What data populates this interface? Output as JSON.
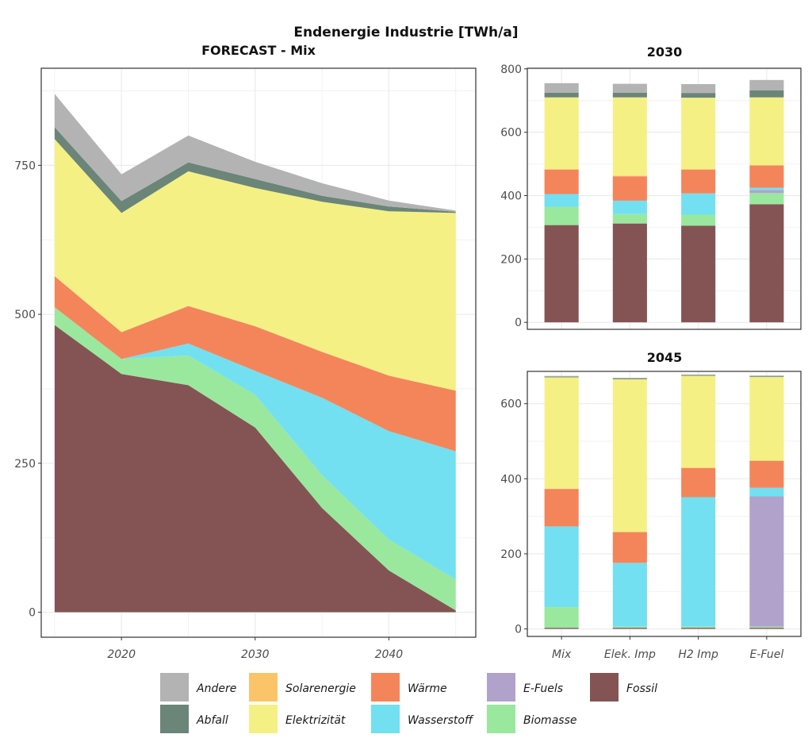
{
  "main_title": "Endenergie Industrie [TWh/a]",
  "colors": {
    "Andere": "#b3b3b3",
    "Abfall": "#6b8579",
    "Solarenergie": "#fcc468",
    "Elektrizität": "#f5f084",
    "Wärme": "#f4855b",
    "Wasserstoff": "#72e0f0",
    "E-Fuels": "#b1a2cc",
    "Biomasse": "#99e89e",
    "Fossil": "#845454"
  },
  "legend": [
    {
      "key": "Andere",
      "label": "Andere"
    },
    {
      "key": "Abfall",
      "label": "Abfall"
    },
    {
      "key": "Solarenergie",
      "label": "Solarenergie"
    },
    {
      "key": "Elektrizität",
      "label": "Elektrizität"
    },
    {
      "key": "Wärme",
      "label": "Wärme"
    },
    {
      "key": "Wasserstoff",
      "label": "Wasserstoff"
    },
    {
      "key": "E-Fuels",
      "label": "E-Fuels"
    },
    {
      "key": "Biomasse",
      "label": "Biomasse"
    },
    {
      "key": "Fossil",
      "label": "Fossil"
    }
  ],
  "chart_data": [
    {
      "type": "area",
      "stacked": true,
      "title": "FORECAST - Mix",
      "x": [
        2015,
        2020,
        2025,
        2030,
        2035,
        2040,
        2045
      ],
      "xticks": [
        "2020",
        "2030",
        "2040"
      ],
      "xtick_values": [
        2020,
        2030,
        2040
      ],
      "xlim": [
        2014,
        2046.5
      ],
      "ylim": [
        -42,
        913
      ],
      "yticks": [
        "0",
        "250",
        "500",
        "750"
      ],
      "ytick_values": [
        0,
        250,
        500,
        750
      ],
      "grid": true,
      "series": [
        {
          "name": "Fossil",
          "values": [
            482,
            400,
            381,
            310,
            175,
            70,
            3
          ]
        },
        {
          "name": "Biomasse",
          "values": [
            30,
            25,
            50,
            55,
            55,
            52,
            52
          ]
        },
        {
          "name": "E-Fuels",
          "values": [
            0,
            0,
            0,
            0,
            0,
            0,
            0
          ]
        },
        {
          "name": "Wasserstoff",
          "values": [
            0,
            0,
            20,
            40,
            130,
            182,
            215
          ]
        },
        {
          "name": "Wärme",
          "values": [
            52,
            45,
            63,
            75,
            77,
            93,
            102
          ]
        },
        {
          "name": "Elektrizität",
          "values": [
            230,
            200,
            226,
            232,
            252,
            276,
            298
          ]
        },
        {
          "name": "Solarenergie",
          "values": [
            0,
            0,
            0,
            0,
            0,
            0,
            0
          ]
        },
        {
          "name": "Abfall",
          "values": [
            20,
            20,
            15,
            15,
            10,
            8,
            2
          ]
        },
        {
          "name": "Andere",
          "values": [
            56,
            45,
            45,
            29,
            21,
            10,
            2
          ]
        }
      ]
    },
    {
      "type": "bar",
      "stacked": true,
      "title": "2030",
      "categories": [
        "Mix",
        "Elek. Imp",
        "H2 Imp",
        "E-Fuel"
      ],
      "ylim": [
        -22,
        802
      ],
      "yticks": [
        "0",
        "200",
        "400",
        "600",
        "800"
      ],
      "ytick_values": [
        0,
        200,
        400,
        600,
        800
      ],
      "grid": true,
      "series": [
        {
          "name": "Fossil",
          "values": [
            307,
            312,
            305,
            373
          ]
        },
        {
          "name": "Biomasse",
          "values": [
            58,
            30,
            35,
            35
          ]
        },
        {
          "name": "E-Fuels",
          "values": [
            0,
            0,
            0,
            10
          ]
        },
        {
          "name": "Wasserstoff",
          "values": [
            40,
            42,
            67,
            7
          ]
        },
        {
          "name": "Wärme",
          "values": [
            77,
            77,
            75,
            70
          ]
        },
        {
          "name": "Solarenergie",
          "values": [
            2,
            2,
            2,
            2
          ]
        },
        {
          "name": "Elektrizität",
          "values": [
            226,
            247,
            225,
            213
          ]
        },
        {
          "name": "Abfall",
          "values": [
            15,
            15,
            15,
            22
          ]
        },
        {
          "name": "Andere",
          "values": [
            30,
            28,
            28,
            33
          ]
        }
      ]
    },
    {
      "type": "bar",
      "stacked": true,
      "title": "2045",
      "categories": [
        "Mix",
        "Elek. Imp",
        "H2 Imp",
        "E-Fuel"
      ],
      "ylim": [
        -20,
        686
      ],
      "yticks": [
        "0",
        "200",
        "400",
        "600"
      ],
      "ytick_values": [
        0,
        200,
        400,
        600
      ],
      "grid": true,
      "series": [
        {
          "name": "Fossil",
          "values": [
            3,
            3,
            3,
            3
          ]
        },
        {
          "name": "Biomasse",
          "values": [
            55,
            3,
            3,
            3
          ]
        },
        {
          "name": "E-Fuels",
          "values": [
            0,
            0,
            0,
            347
          ]
        },
        {
          "name": "Wasserstoff",
          "values": [
            215,
            170,
            345,
            23
          ]
        },
        {
          "name": "Wärme",
          "values": [
            100,
            82,
            78,
            72
          ]
        },
        {
          "name": "Elektrizität",
          "values": [
            297,
            407,
            245,
            223
          ]
        },
        {
          "name": "Solarenergie",
          "values": [
            0,
            0,
            0,
            0
          ]
        },
        {
          "name": "Abfall",
          "values": [
            2,
            2,
            2,
            2
          ]
        },
        {
          "name": "Andere",
          "values": [
            2,
            2,
            2,
            2
          ]
        }
      ]
    }
  ]
}
